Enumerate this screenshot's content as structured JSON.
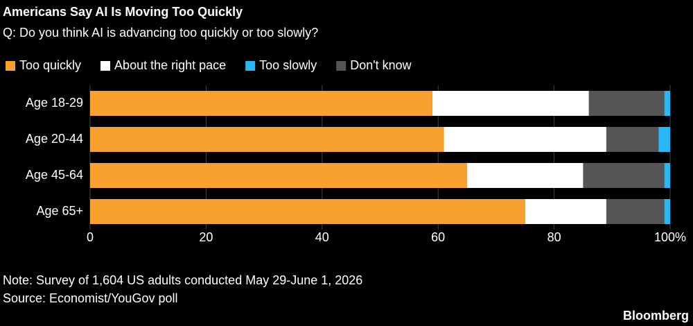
{
  "chart_data": {
    "type": "stacked-bar-horizontal",
    "title": "Americans Say AI Is Moving Too Quickly",
    "subtitle": "Q: Do you think AI is advancing too quickly or too slowly?",
    "categories": [
      "Age 18-29",
      "Age 20-44",
      "Age 45-64",
      "Age 65+"
    ],
    "series": [
      {
        "name": "Too quickly",
        "color": "#f8a12f",
        "values": [
          59,
          61,
          65,
          75
        ]
      },
      {
        "name": "About the right pace",
        "color": "#ffffff",
        "values": [
          27,
          28,
          20,
          14
        ]
      },
      {
        "name": "Too slowly",
        "color": "#2ab7f5",
        "values": [
          1,
          2,
          1,
          1
        ]
      },
      {
        "name": "Don't know",
        "color": "#555555",
        "values": [
          13,
          9,
          14,
          10
        ]
      }
    ],
    "stack_order": [
      0,
      1,
      3,
      2
    ],
    "xlim": [
      0,
      100
    ],
    "xticks": [
      0,
      20,
      40,
      60,
      80,
      {
        "value": 100,
        "label": "100%"
      }
    ],
    "grid": true,
    "note": "Note: Survey of 1,604 US adults conducted May 29-June 1, 2026",
    "source": "Source: Economist/YouGov poll",
    "brand": "Bloomberg"
  }
}
